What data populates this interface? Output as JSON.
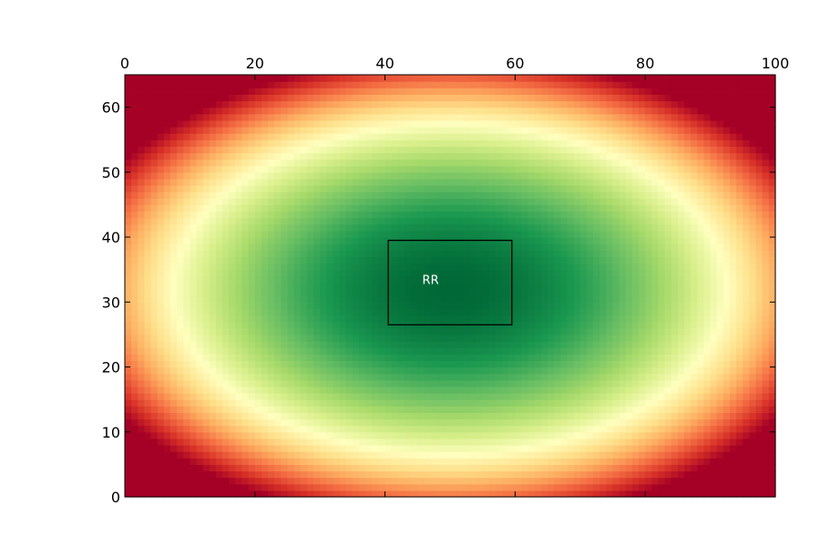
{
  "chart_data": {
    "type": "heatmap",
    "title": "",
    "xlabel": "",
    "ylabel": "",
    "xlim": [
      0,
      100
    ],
    "ylim": [
      0,
      65
    ],
    "x_ticks": [
      "0",
      "20",
      "40",
      "60",
      "80",
      "100"
    ],
    "y_ticks": [
      "0",
      "10",
      "20",
      "30",
      "40",
      "50",
      "60"
    ],
    "x_axis_position": "top",
    "colormap": "RdYlGn_r",
    "grid": false,
    "cells_x": 100,
    "cells_y": 65,
    "field": {
      "shape": "elliptical radial gradient",
      "center": [
        50,
        32
      ],
      "low_value_color": "green",
      "high_value_color": "red"
    },
    "annotations": [
      {
        "label": "RR",
        "x_range": [
          40.5,
          59.5
        ],
        "y_range": [
          26.5,
          39.5
        ],
        "text_at": [
          47,
          33.5
        ]
      }
    ],
    "colors": {
      "frame": "#000000",
      "annotation_text": "#ffffff",
      "annotation_box": "#000000"
    }
  }
}
